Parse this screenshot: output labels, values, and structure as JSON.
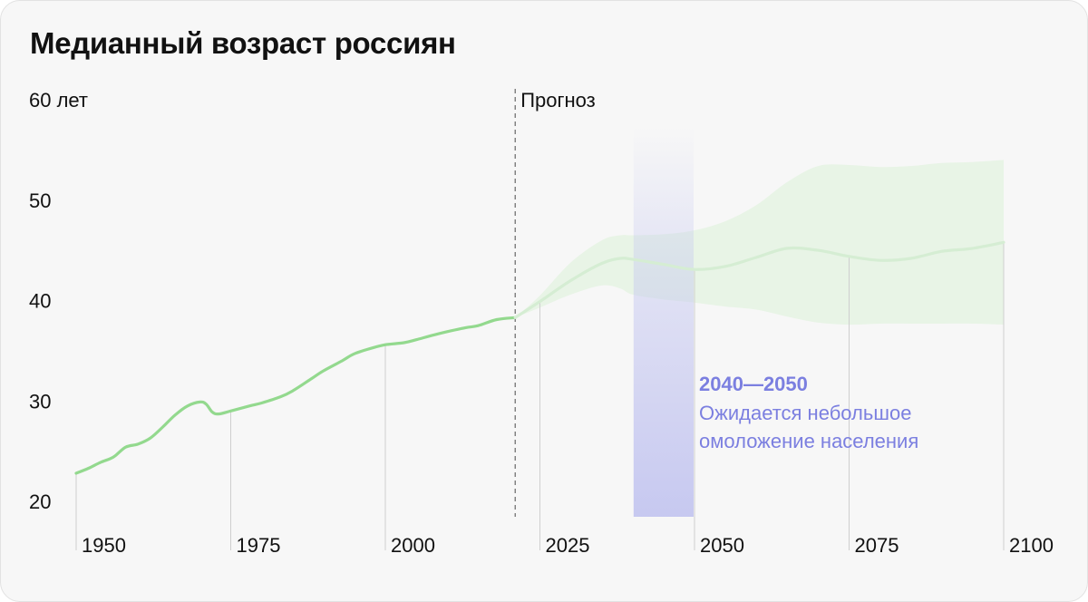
{
  "chart_data": {
    "type": "line",
    "title": "Медианный возраст россиян",
    "y_ticks": [
      "20",
      "30",
      "40",
      "50",
      "60 лет"
    ],
    "y_tick_values": [
      20,
      30,
      40,
      50,
      60
    ],
    "x_ticks": [
      "1950",
      "1975",
      "2000",
      "2025",
      "2050",
      "2075",
      "2100"
    ],
    "x_tick_values": [
      1950,
      1975,
      2000,
      2025,
      2050,
      2075,
      2100
    ],
    "xlim": [
      1950,
      2100
    ],
    "ylim": [
      20,
      60
    ],
    "forecast_start": 2021,
    "forecast_label": "Прогноз",
    "historical": {
      "x": [
        1950,
        1952,
        1954,
        1956,
        1958,
        1960,
        1962,
        1964,
        1966,
        1968,
        1970,
        1971,
        1972,
        1973,
        1975,
        1978,
        1980,
        1983,
        1985,
        1988,
        1990,
        1993,
        1995,
        1998,
        2000,
        2003,
        2005,
        2008,
        2010,
        2013,
        2015,
        2018,
        2021
      ],
      "y": [
        22.8,
        23.3,
        23.9,
        24.4,
        25.4,
        25.7,
        26.3,
        27.4,
        28.6,
        29.5,
        29.9,
        29.7,
        28.9,
        28.7,
        29.0,
        29.5,
        29.8,
        30.4,
        31.0,
        32.2,
        33.0,
        34.0,
        34.7,
        35.3,
        35.6,
        35.8,
        36.1,
        36.6,
        36.9,
        37.3,
        37.5,
        38.1,
        38.3
      ]
    },
    "forecast": {
      "x": [
        2021,
        2025,
        2030,
        2035,
        2038,
        2040,
        2045,
        2050,
        2055,
        2060,
        2065,
        2070,
        2075,
        2080,
        2085,
        2090,
        2095,
        2100
      ],
      "median": [
        38.3,
        39.9,
        42.0,
        43.7,
        44.2,
        44.1,
        43.6,
        43.1,
        43.4,
        44.3,
        45.2,
        45.0,
        44.4,
        44.0,
        44.2,
        44.9,
        45.2,
        45.8
      ],
      "upper": [
        38.3,
        40.5,
        43.8,
        46.0,
        46.5,
        46.5,
        46.6,
        47.0,
        47.9,
        49.5,
        51.8,
        53.4,
        53.5,
        53.3,
        53.4,
        53.7,
        53.8,
        54.0
      ],
      "lower": [
        38.3,
        39.3,
        40.6,
        41.5,
        41.2,
        40.6,
        40.1,
        39.8,
        39.4,
        39.1,
        38.4,
        37.8,
        37.6,
        37.7,
        37.7,
        37.7,
        37.7,
        37.6
      ]
    },
    "highlight": {
      "x_range": [
        2040,
        2050
      ],
      "label": "2040—2050",
      "text_lines": [
        "Ожидается небольшое",
        "омоложение населения"
      ]
    },
    "colors": {
      "historical_line": "#93d98e",
      "forecast_line": "#d5edd3",
      "forecast_band": "#e8f4e6",
      "highlight_band": "#c4c6f0",
      "annotation": "#7b7fe0",
      "forecast_divider": "#666666",
      "gridline": "#cfcfcf"
    },
    "grid": false
  }
}
